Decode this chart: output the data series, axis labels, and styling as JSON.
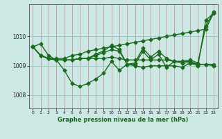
{
  "background_color": "#cce8e4",
  "grid_color_v": "#cc8888",
  "grid_color_h": "#88cccc",
  "line_color": "#1a6b1a",
  "title": "Graphe pression niveau de la mer (hPa)",
  "xlim": [
    -0.5,
    23.5
  ],
  "ylim": [
    1007.55,
    1011.1
  ],
  "yticks": [
    1008,
    1009,
    1010
  ],
  "xticks": [
    0,
    1,
    2,
    3,
    4,
    5,
    6,
    7,
    8,
    9,
    10,
    11,
    12,
    13,
    14,
    15,
    16,
    17,
    18,
    19,
    20,
    21,
    22,
    23
  ],
  "series": [
    [
      1009.65,
      1009.75,
      1009.35,
      1009.2,
      1008.85,
      1008.4,
      1008.3,
      1008.4,
      1008.55,
      1008.75,
      1009.15,
      1008.85,
      1009.05,
      1009.0,
      1008.95,
      1009.0,
      1009.0,
      1009.0,
      1009.0,
      1008.95,
      1009.1,
      1009.0,
      1010.55,
      1010.8
    ],
    [
      1009.65,
      1009.35,
      1009.25,
      1009.2,
      1009.2,
      1009.2,
      1009.25,
      1009.25,
      1009.25,
      1009.25,
      1009.3,
      1009.25,
      1009.2,
      1009.2,
      1009.2,
      1009.2,
      1009.2,
      1009.2,
      1009.15,
      1009.1,
      1009.1,
      1009.05,
      1009.05,
      1009.0
    ],
    [
      1009.65,
      1009.35,
      1009.25,
      1009.2,
      1009.2,
      1009.2,
      1009.25,
      1009.25,
      1009.4,
      1009.5,
      1009.7,
      1009.55,
      1009.05,
      1009.1,
      1009.6,
      1009.3,
      1009.5,
      1009.25,
      1009.15,
      1009.15,
      1009.2,
      1009.1,
      1010.35,
      1010.85
    ],
    [
      1009.65,
      1009.35,
      1009.25,
      1009.2,
      1009.2,
      1009.2,
      1009.25,
      1009.25,
      1009.35,
      1009.45,
      1009.55,
      1009.5,
      1009.05,
      1009.05,
      1009.5,
      1009.2,
      1009.4,
      1008.95,
      1009.15,
      1009.15,
      1009.15,
      1009.05,
      1009.05,
      1009.05
    ],
    [
      1009.65,
      1009.35,
      1009.25,
      1009.25,
      1009.25,
      1009.35,
      1009.4,
      1009.5,
      1009.55,
      1009.6,
      1009.65,
      1009.7,
      1009.75,
      1009.8,
      1009.85,
      1009.9,
      1009.95,
      1010.0,
      1010.05,
      1010.1,
      1010.15,
      1010.2,
      1010.25,
      1010.8
    ]
  ],
  "marker": "D",
  "markersize": 2.5,
  "linewidth": 1.0
}
